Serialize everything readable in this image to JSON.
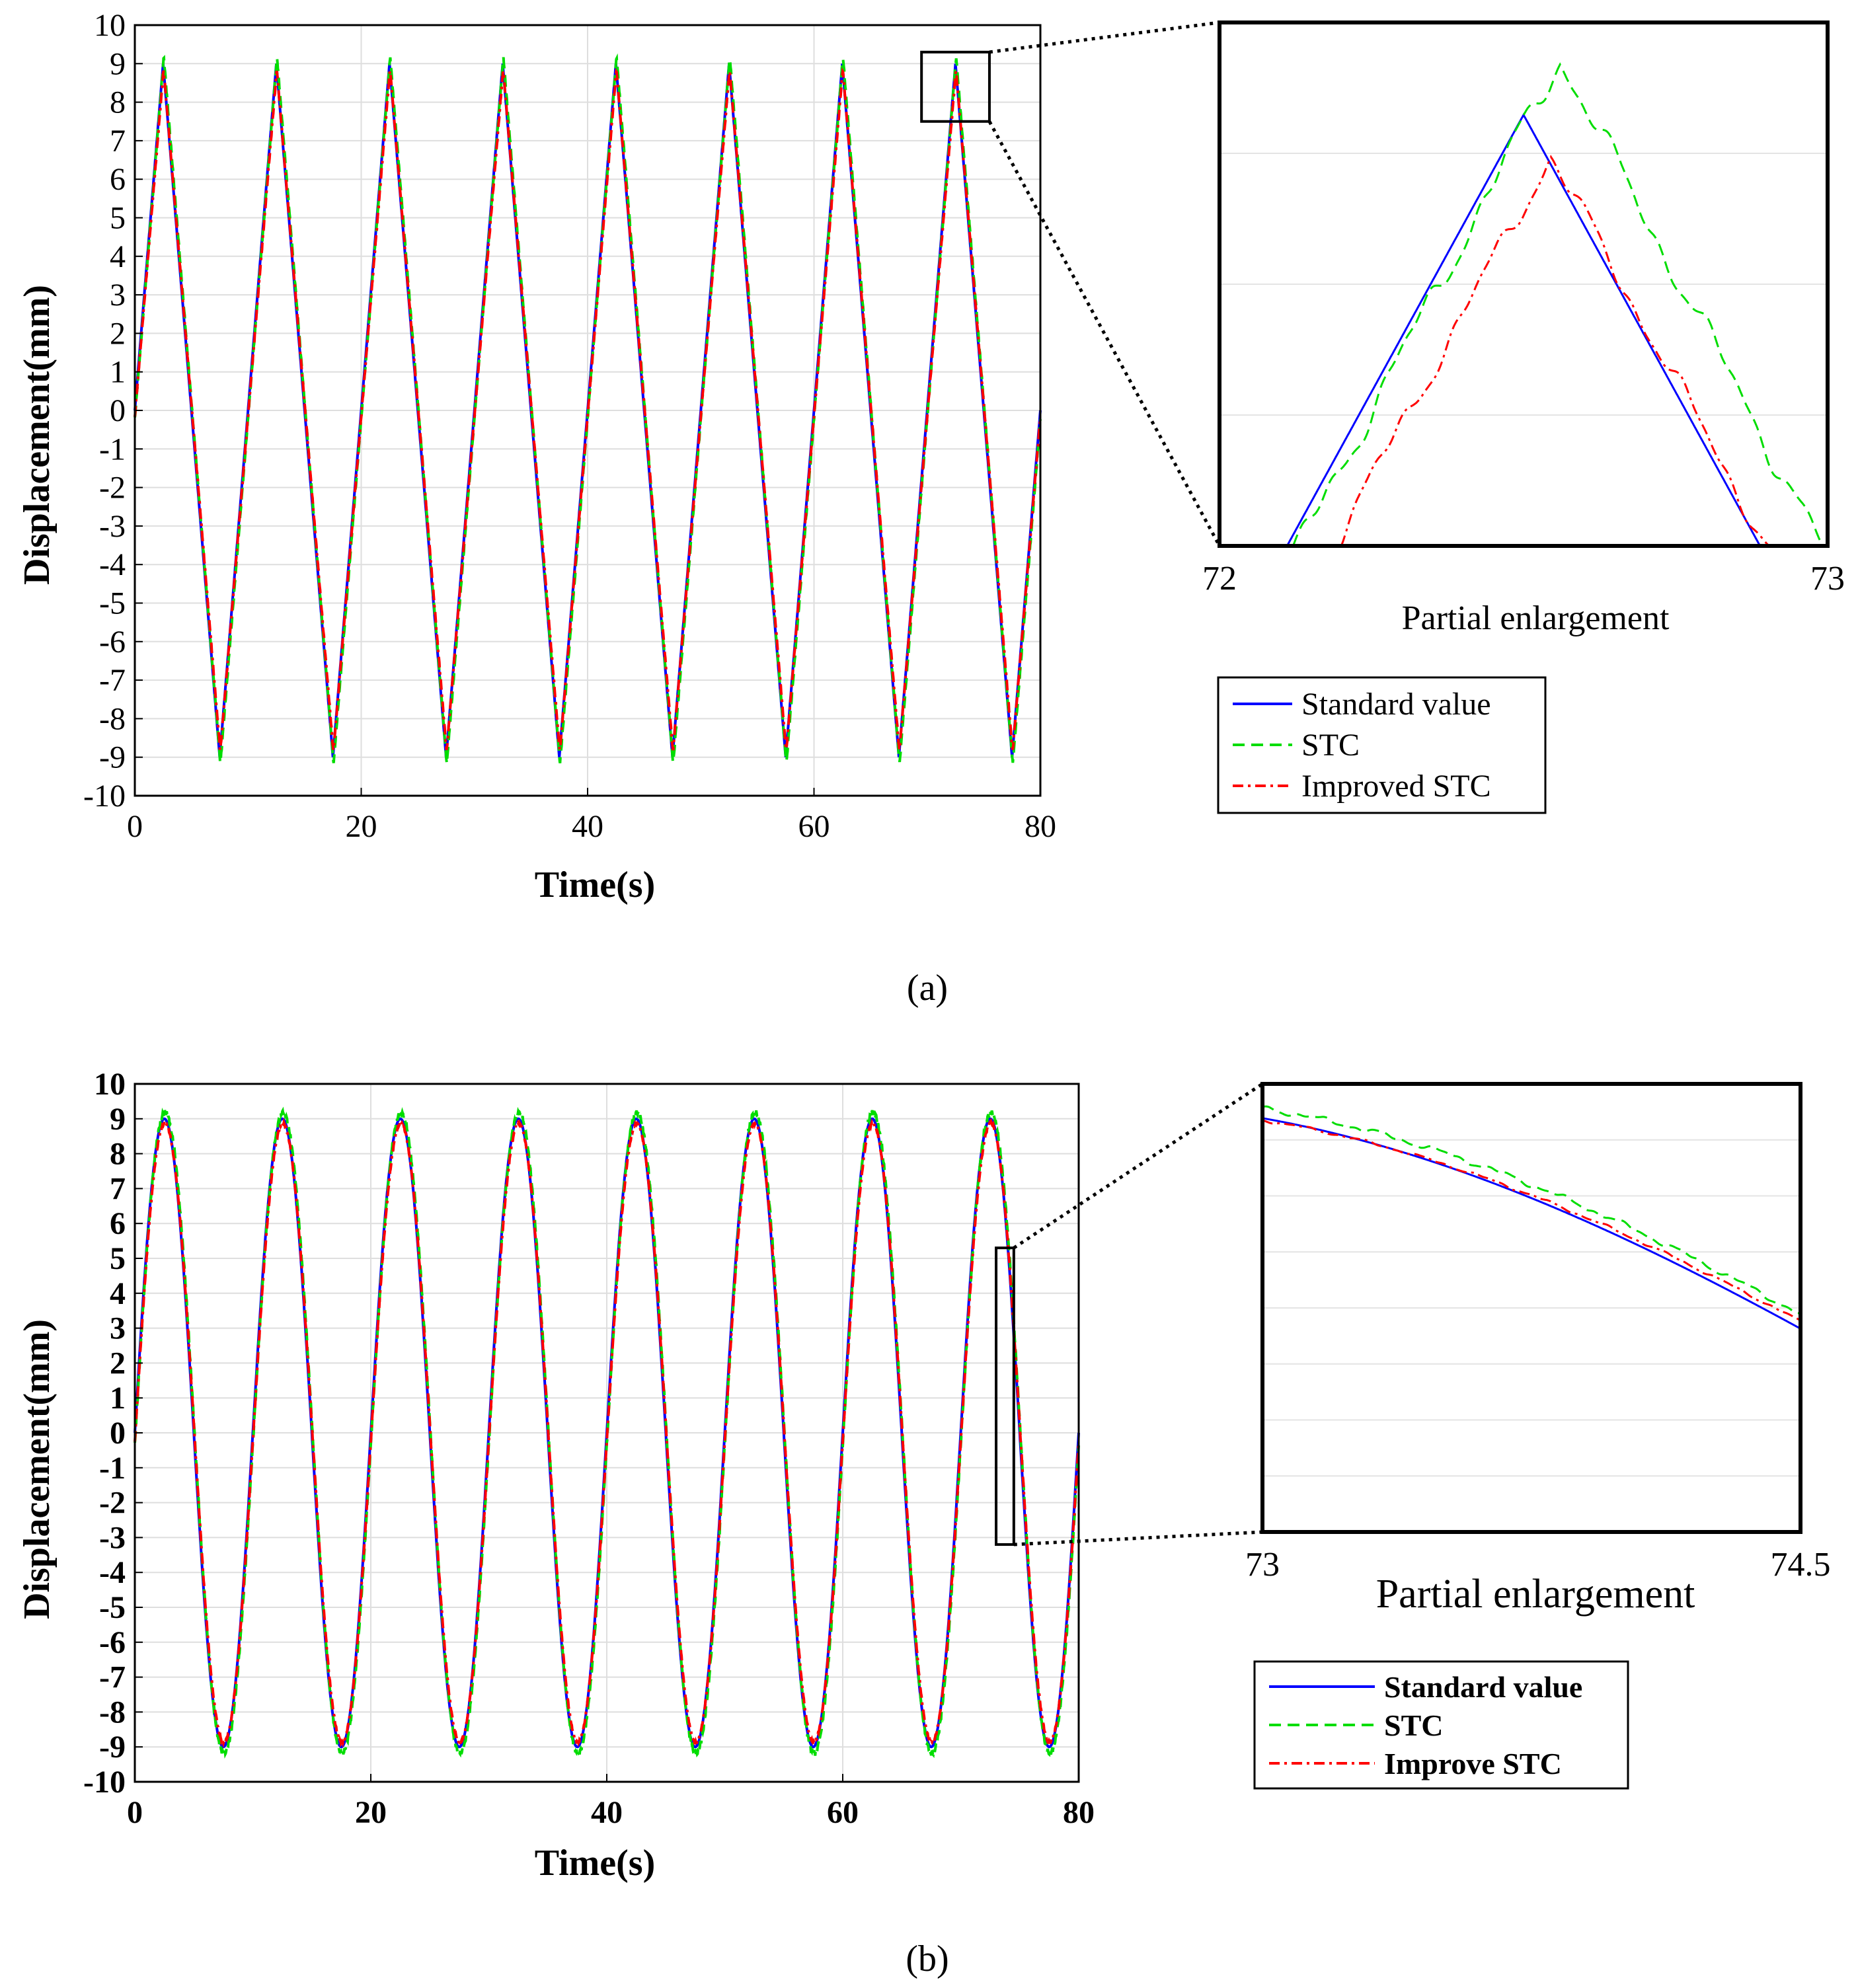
{
  "chart_data": [
    {
      "panel": "a",
      "type": "line",
      "caption": "(a)",
      "xlabel": "Time(s)",
      "ylabel": "Displacement(mm)",
      "xlim": [
        0,
        80
      ],
      "ylim": [
        -10,
        10
      ],
      "xticks": [
        "0",
        "20",
        "40",
        "60",
        "80"
      ],
      "yticks": [
        "-10",
        "-9",
        "-8",
        "-7",
        "-6",
        "-5",
        "-4",
        "-3",
        "-2",
        "-1",
        "0",
        "1",
        "2",
        "3",
        "4",
        "5",
        "6",
        "7",
        "8",
        "9",
        "10"
      ],
      "grid": true,
      "waveform": "triangle",
      "amplitude": 9,
      "period": 10,
      "series": [
        {
          "name": "Standard value",
          "color": "#0000ff",
          "style": "solid"
        },
        {
          "name": "STC",
          "color": "#00dd00",
          "style": "dashed"
        },
        {
          "name": "Improved STC",
          "color": "#ff0000",
          "style": "dashdot"
        }
      ],
      "zoom_window": {
        "x": [
          69.5,
          75.5
        ],
        "y": [
          7.5,
          9.3
        ]
      },
      "inset": {
        "title": "Partial enlargement",
        "xticks": [
          "72",
          "73"
        ],
        "xlim": [
          72,
          73
        ],
        "ylim": [
          7.6,
          9.3
        ]
      }
    },
    {
      "panel": "b",
      "type": "line",
      "caption": "(b)",
      "xlabel": "Time(s)",
      "ylabel": "Displacement(mm)",
      "xlim": [
        0,
        80
      ],
      "ylim": [
        -10,
        10
      ],
      "xticks": [
        "0",
        "20",
        "40",
        "60",
        "80"
      ],
      "yticks": [
        "-10",
        "-9",
        "-8",
        "-7",
        "-6",
        "-5",
        "-4",
        "-3",
        "-2",
        "-1",
        "0",
        "1",
        "2",
        "3",
        "4",
        "5",
        "6",
        "7",
        "8",
        "9",
        "10"
      ],
      "grid": true,
      "waveform": "sine",
      "amplitude": 9,
      "period": 10,
      "series": [
        {
          "name": "Standard value",
          "color": "#0000ff",
          "style": "solid"
        },
        {
          "name": "STC",
          "color": "#00dd00",
          "style": "dashed"
        },
        {
          "name": "Improve STC",
          "color": "#ff0000",
          "style": "dashdot"
        }
      ],
      "zoom_window": {
        "x": [
          73,
          74.5
        ],
        "y": [
          -3.2,
          5.3
        ]
      },
      "inset": {
        "title": "Partial enlargement",
        "xticks": [
          "73",
          "74.5"
        ],
        "xlim": [
          73,
          74.5
        ],
        "ylim": [
          -2.8,
          9.5
        ]
      }
    }
  ]
}
